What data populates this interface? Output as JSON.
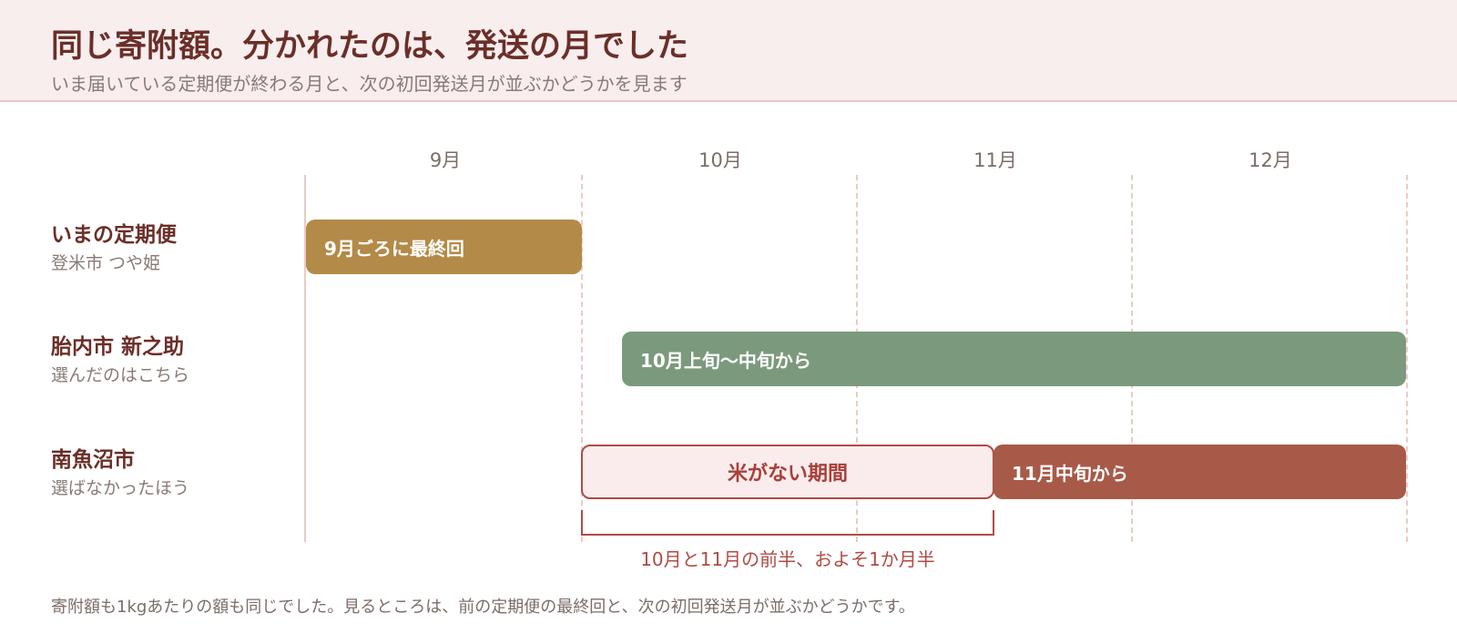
{
  "header": {
    "title": "同じ寄附額。分かれたのは、発送の月でした",
    "subtitle": "いま届いている定期便が終わる月と、次の初回発送月が並ぶかどうかを見ます"
  },
  "months": [
    "9月",
    "10月",
    "11月",
    "12月"
  ],
  "rows": [
    {
      "title": "いまの定期便",
      "sub": "登米市 つや姫"
    },
    {
      "title": "胎内市 新之助",
      "sub": "選んだのはこちら"
    },
    {
      "title": "南魚沼市",
      "sub": "選ばなかったほう"
    }
  ],
  "bars": {
    "current_last": "9月ごろに最終回",
    "tainai_start": "10月上旬〜中旬から",
    "gap": "米がない期間",
    "minamiuonuma_start": "11月中旬から"
  },
  "bracket_label": "10月と11月の前半、およそ1か月半",
  "footer": "寄附額も1kgあたりの額も同じでした。見るところは、前の定期便の最終回と、次の初回発送月が並ぶかどうかです。",
  "colors": {
    "current": "#b38a47",
    "tainai": "#7b9a7d",
    "minamiuonuma": "#a85a48",
    "gap_border": "#b24b44",
    "header_bg": "#f8eeee"
  }
}
